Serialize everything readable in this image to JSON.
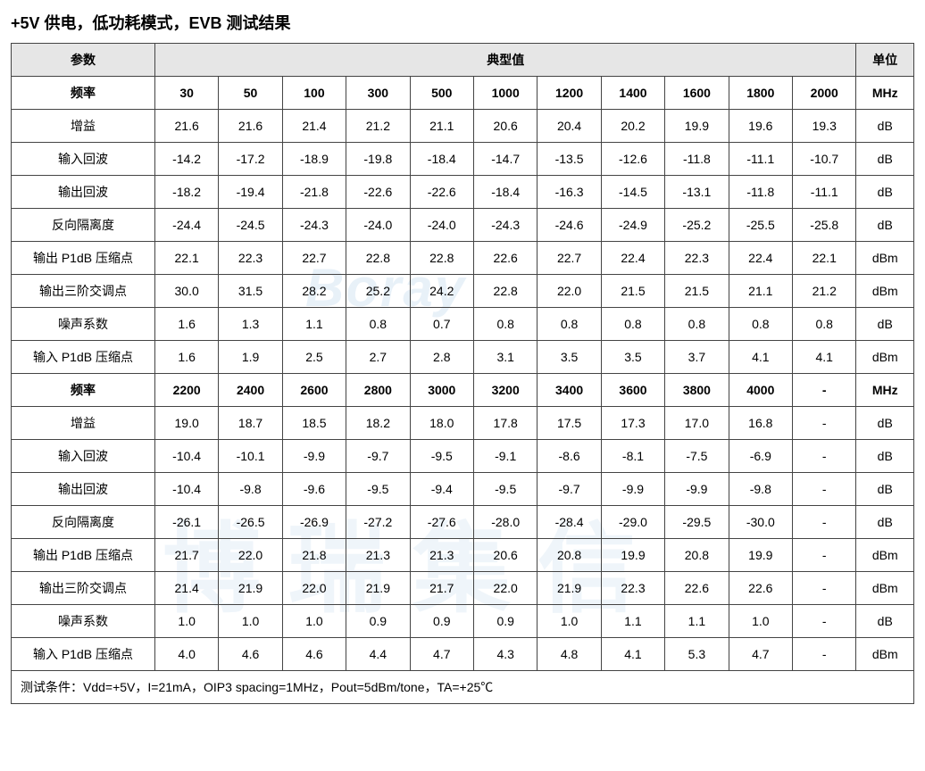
{
  "title": "+5V 供电，低功耗模式，EVB 测试结果",
  "head": {
    "param": "参数",
    "typical": "典型值",
    "unit": "单位"
  },
  "freqLabel": "频率",
  "freqUnit": "MHz",
  "freq1": [
    "30",
    "50",
    "100",
    "300",
    "500",
    "1000",
    "1200",
    "1400",
    "1600",
    "1800",
    "2000"
  ],
  "freq2": [
    "2200",
    "2400",
    "2600",
    "2800",
    "3000",
    "3200",
    "3400",
    "3600",
    "3800",
    "4000",
    "-"
  ],
  "params": {
    "gain": "增益",
    "inrl": "输入回波",
    "outrl": "输出回波",
    "iso": "反向隔离度",
    "op1db": "输出 P1dB 压缩点",
    "oip3": "输出三阶交调点",
    "nf": "噪声系数",
    "ip1db": "输入 P1dB 压缩点"
  },
  "units": {
    "gain": "dB",
    "inrl": "dB",
    "outrl": "dB",
    "iso": "dB",
    "op1db": "dBm",
    "oip3": "dBm",
    "nf": "dB",
    "ip1db": "dBm"
  },
  "block1": {
    "gain": [
      "21.6",
      "21.6",
      "21.4",
      "21.2",
      "21.1",
      "20.6",
      "20.4",
      "20.2",
      "19.9",
      "19.6",
      "19.3"
    ],
    "inrl": [
      "-14.2",
      "-17.2",
      "-18.9",
      "-19.8",
      "-18.4",
      "-14.7",
      "-13.5",
      "-12.6",
      "-11.8",
      "-11.1",
      "-10.7"
    ],
    "outrl": [
      "-18.2",
      "-19.4",
      "-21.8",
      "-22.6",
      "-22.6",
      "-18.4",
      "-16.3",
      "-14.5",
      "-13.1",
      "-11.8",
      "-11.1"
    ],
    "iso": [
      "-24.4",
      "-24.5",
      "-24.3",
      "-24.0",
      "-24.0",
      "-24.3",
      "-24.6",
      "-24.9",
      "-25.2",
      "-25.5",
      "-25.8"
    ],
    "op1db": [
      "22.1",
      "22.3",
      "22.7",
      "22.8",
      "22.8",
      "22.6",
      "22.7",
      "22.4",
      "22.3",
      "22.4",
      "22.1"
    ],
    "oip3": [
      "30.0",
      "31.5",
      "28.2",
      "25.2",
      "24.2",
      "22.8",
      "22.0",
      "21.5",
      "21.5",
      "21.1",
      "21.2"
    ],
    "nf": [
      "1.6",
      "1.3",
      "1.1",
      "0.8",
      "0.7",
      "0.8",
      "0.8",
      "0.8",
      "0.8",
      "0.8",
      "0.8"
    ],
    "ip1db": [
      "1.6",
      "1.9",
      "2.5",
      "2.7",
      "2.8",
      "3.1",
      "3.5",
      "3.5",
      "3.7",
      "4.1",
      "4.1"
    ]
  },
  "block2": {
    "gain": [
      "19.0",
      "18.7",
      "18.5",
      "18.2",
      "18.0",
      "17.8",
      "17.5",
      "17.3",
      "17.0",
      "16.8",
      "-"
    ],
    "inrl": [
      "-10.4",
      "-10.1",
      "-9.9",
      "-9.7",
      "-9.5",
      "-9.1",
      "-8.6",
      "-8.1",
      "-7.5",
      "-6.9",
      "-"
    ],
    "outrl": [
      "-10.4",
      "-9.8",
      "-9.6",
      "-9.5",
      "-9.4",
      "-9.5",
      "-9.7",
      "-9.9",
      "-9.9",
      "-9.8",
      "-"
    ],
    "iso": [
      "-26.1",
      "-26.5",
      "-26.9",
      "-27.2",
      "-27.6",
      "-28.0",
      "-28.4",
      "-29.0",
      "-29.5",
      "-30.0",
      "-"
    ],
    "op1db": [
      "21.7",
      "22.0",
      "21.8",
      "21.3",
      "21.3",
      "20.6",
      "20.8",
      "19.9",
      "20.8",
      "19.9",
      "-"
    ],
    "oip3": [
      "21.4",
      "21.9",
      "22.0",
      "21.9",
      "21.7",
      "22.0",
      "21.9",
      "22.3",
      "22.6",
      "22.6",
      "-"
    ],
    "nf": [
      "1.0",
      "1.0",
      "1.0",
      "0.9",
      "0.9",
      "0.9",
      "1.0",
      "1.1",
      "1.1",
      "1.0",
      "-"
    ],
    "ip1db": [
      "4.0",
      "4.6",
      "4.6",
      "4.4",
      "4.7",
      "4.3",
      "4.8",
      "4.1",
      "5.3",
      "4.7",
      "-"
    ]
  },
  "footer": "测试条件：Vdd=+5V，I=21mA，OIP3 spacing=1MHz，Pout=5dBm/tone，TA=+25℃",
  "watermark1": "Boray",
  "watermark2": "博瑞集信"
}
